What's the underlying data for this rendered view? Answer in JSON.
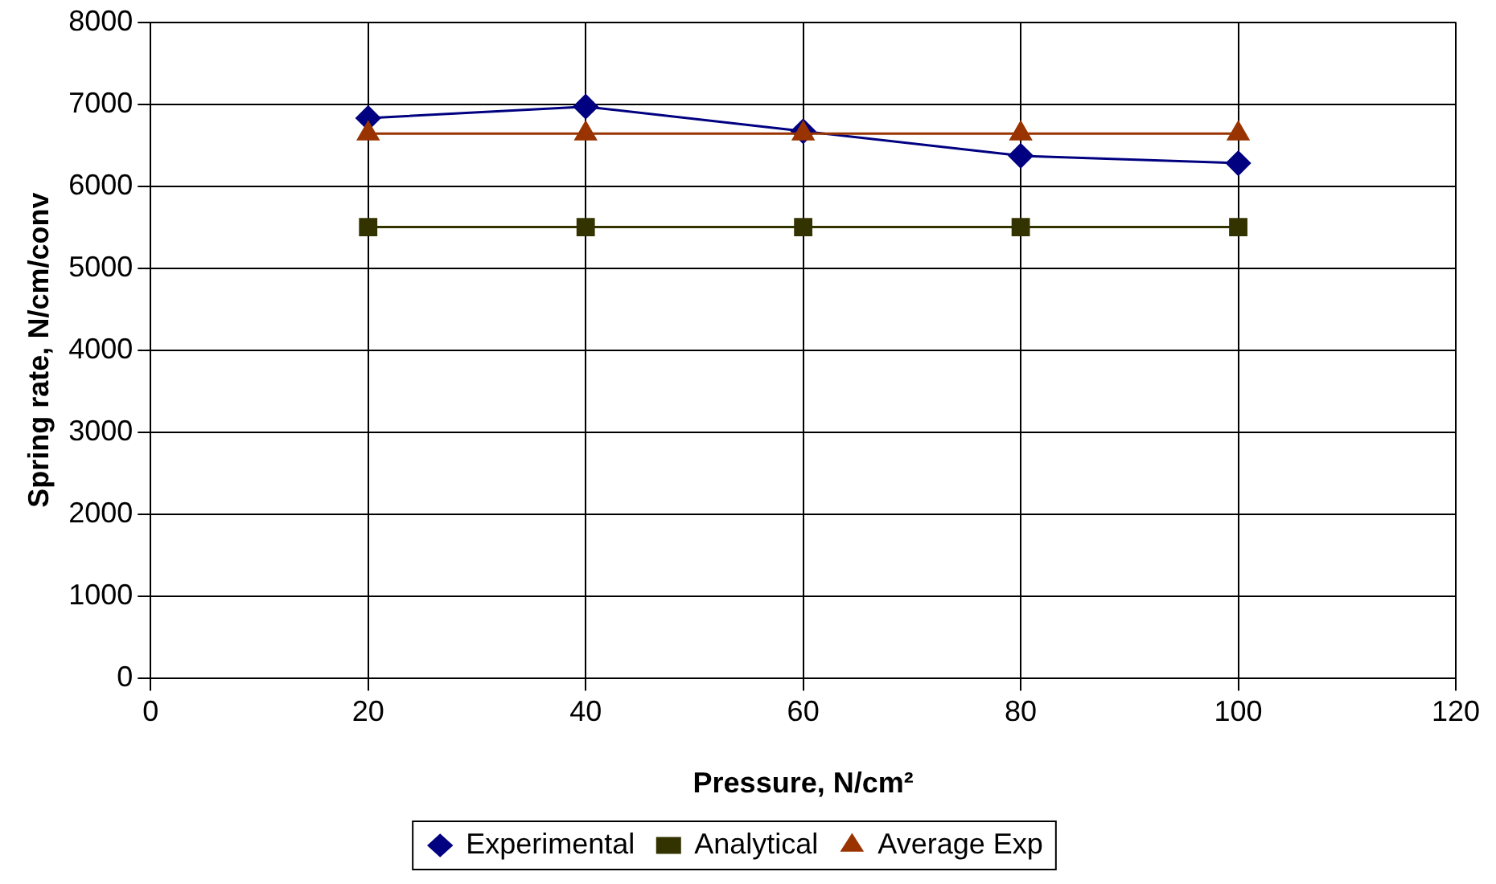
{
  "chart_data": {
    "type": "line",
    "xlabel": "Pressure, N/cm²",
    "ylabel": "Spring rate, N/cm/conv",
    "x": [
      20,
      40,
      60,
      80,
      100
    ],
    "series": [
      {
        "name": "Experimental",
        "color": "#000080",
        "values": [
          6830,
          6970,
          6670,
          6370,
          6280
        ],
        "marker": "diamond"
      },
      {
        "name": "Analytical",
        "color": "#333300",
        "values": [
          5500,
          5500,
          5500,
          5500,
          5500
        ],
        "marker": "square"
      },
      {
        "name": "Average Exp",
        "color": "#993300",
        "values": [
          6640,
          6640,
          6640,
          6640,
          6640
        ],
        "marker": "triangle"
      }
    ],
    "xlim": [
      0,
      120
    ],
    "xticks": [
      0,
      20,
      40,
      60,
      80,
      100,
      120
    ],
    "ylim": [
      0,
      8000
    ],
    "yticks": [
      0,
      1000,
      2000,
      3000,
      4000,
      5000,
      6000,
      7000,
      8000
    ],
    "grid": true,
    "legend": "bottom",
    "line_style": "solid"
  }
}
